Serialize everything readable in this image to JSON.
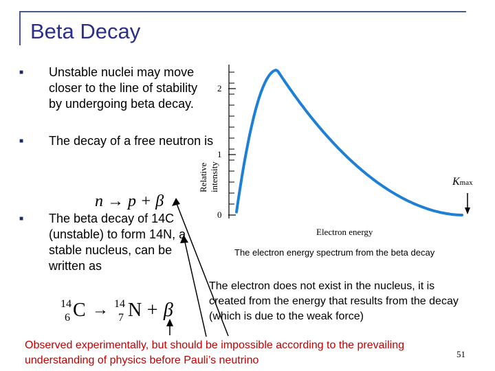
{
  "slide": {
    "title": "Beta Decay",
    "bullets": [
      "Unstable nuclei may move closer to the line of stability by undergoing beta decay.",
      "The decay of a free neutron is",
      "The beta decay of 14C (unstable) to form 14N, a stable nucleus, can be written as"
    ],
    "neutron_equation": "n → p + β",
    "carbon_equation": {
      "reactant_symbol": "C",
      "reactant_mass": "14",
      "reactant_atomic": "6",
      "product_symbol": "N",
      "product_mass": "14",
      "product_atomic": "7",
      "plus_beta": "+ β"
    },
    "graph": {
      "ylabel": "Relative intensity",
      "xlabel": "Electron energy",
      "y_ticks": [
        "0",
        "1",
        "2"
      ],
      "kmax_label": "K",
      "kmax_sub": "max",
      "curve_peak_intensity": 2.4,
      "curve_peak_fraction": 0.18
    },
    "caption": "The electron energy spectrum from the beta decay",
    "note": "The electron does not exist in the nucleus, it is created from the energy that results from the decay (which is due to the weak force)",
    "observed": "Observed experimentally, but should be impossible according to the prevailing understanding of physics before Pauli’s neutrino",
    "page_number": "51"
  }
}
